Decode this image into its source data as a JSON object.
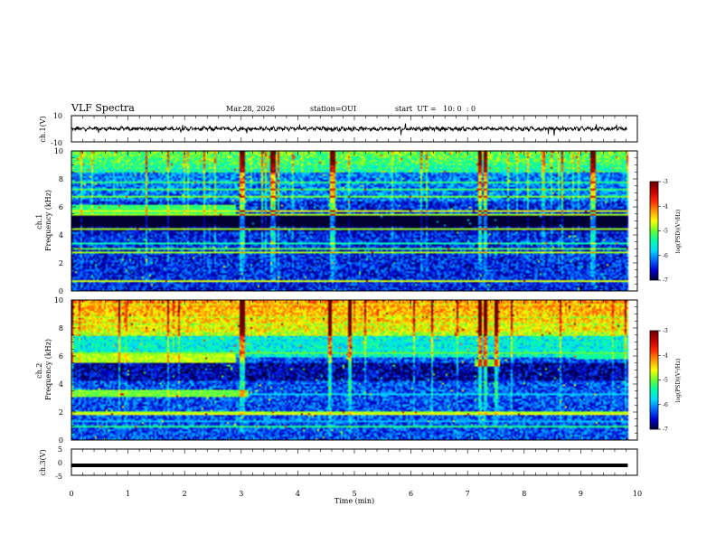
{
  "header": {
    "title": "VLF Spectra",
    "date": "Mar.28, 2026",
    "station": "station=OUI",
    "start": "start  UT =   10: 0  : 0"
  },
  "colorbar": {
    "label": "log(PSD)(V²/Hz)",
    "ticks": [
      "-3",
      "-4",
      "-5",
      "-6",
      "-7"
    ],
    "colors": [
      "#6a0000",
      "#c00000",
      "#ff2a00",
      "#ff9900",
      "#ffff00",
      "#66ff33",
      "#00ffaa",
      "#00d8ff",
      "#0066ff",
      "#0000cc",
      "#000033"
    ]
  },
  "chart_data": [
    {
      "type": "line",
      "name": "ch1-waveform",
      "ylabel": "ch.1(V)",
      "ylim": [
        -10,
        10
      ],
      "yticks": [
        "10",
        "-10"
      ],
      "xlim": [
        0,
        10
      ],
      "description_level": 0
    },
    {
      "type": "heatmap",
      "name": "ch1-spectrogram",
      "ylabel": "ch.1\nFrequency (kHz)",
      "ylabel_lines": [
        "ch.1",
        "Frequency (kHz)"
      ],
      "ylim": [
        0,
        10
      ],
      "yticks": [
        "0",
        "2",
        "4",
        "6",
        "8",
        "10"
      ],
      "xlim": [
        0,
        10
      ],
      "data_end_min": 9.83,
      "bands": [
        {
          "f0": 5.6,
          "f1": 6.2,
          "t_end": 2.9,
          "level": 0.45
        },
        {
          "f0": 4.7,
          "f1": 5.4,
          "t_end": 9.83,
          "level": 0.04
        }
      ],
      "spikes_min": [
        3.0,
        3.55,
        4.6,
        7.2,
        7.3,
        9.2
      ]
    },
    {
      "type": "heatmap",
      "name": "ch2-spectrogram",
      "ylabel": "ch.2\nFrequency (kHz)",
      "ylabel_lines": [
        "ch.2",
        "Frequency (kHz)"
      ],
      "ylim": [
        0,
        10
      ],
      "yticks": [
        "0",
        "2",
        "4",
        "6",
        "8",
        "10"
      ],
      "xlim": [
        0,
        10
      ],
      "data_end_min": 9.83,
      "bands": [
        {
          "f0": 5.6,
          "f1": 6.3,
          "t_end": 2.9,
          "level": 0.55
        },
        {
          "f0": 3.1,
          "f1": 3.6,
          "t_end": 3.1,
          "level": 0.5
        },
        {
          "f0": 5.3,
          "f1": 5.8,
          "t_start": 7.1,
          "t_end": 7.55,
          "level": 0.5
        },
        {
          "f0": 5.8,
          "f1": 6.4,
          "t_start": 8.9,
          "t_end": 9.83,
          "level": 0.4
        }
      ],
      "spikes_min": [
        3.0,
        4.55,
        4.9,
        7.2,
        7.3,
        7.5
      ]
    },
    {
      "type": "line",
      "name": "ch3-waveform",
      "ylabel": "ch.3(V)",
      "ylim": [
        -5,
        5
      ],
      "yticks": [
        "5",
        "0",
        "-5"
      ],
      "xlim": [
        0,
        10
      ],
      "constant_level": -1.2
    }
  ],
  "xaxis": {
    "label": "Time (min)",
    "ticks": [
      "0",
      "1",
      "2",
      "3",
      "4",
      "5",
      "6",
      "7",
      "8",
      "9",
      "10"
    ]
  }
}
